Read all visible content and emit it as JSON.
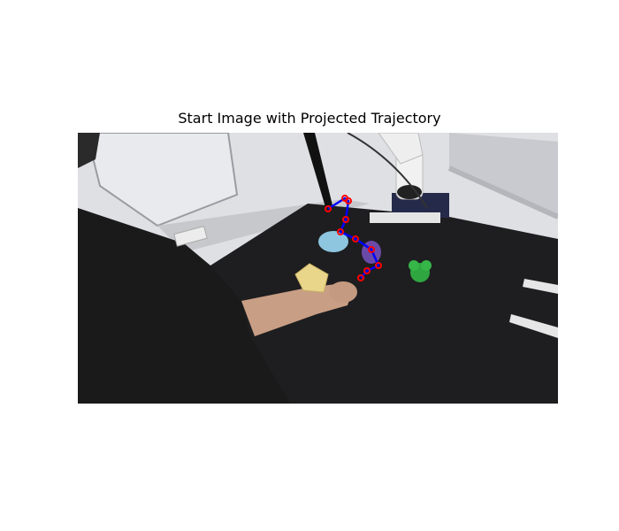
{
  "figure": {
    "title": "Start Image with Projected Trajectory"
  },
  "scene": {
    "description_icons": [
      "robot-arm-icon",
      "bowl-icon",
      "cup-icon",
      "green-block-icon",
      "yellow-box-icon",
      "person-arm-icon"
    ]
  },
  "trajectory": {
    "line_color": "#0000ff",
    "marker_color": "#ff0000",
    "points_data": [
      [
        371,
        236
      ],
      [
        390,
        224
      ],
      [
        394,
        227
      ],
      [
        391,
        248
      ],
      [
        385,
        262
      ],
      [
        402,
        270
      ],
      [
        420,
        282
      ],
      [
        428,
        300
      ],
      [
        415,
        306
      ],
      [
        408,
        314
      ]
    ]
  }
}
